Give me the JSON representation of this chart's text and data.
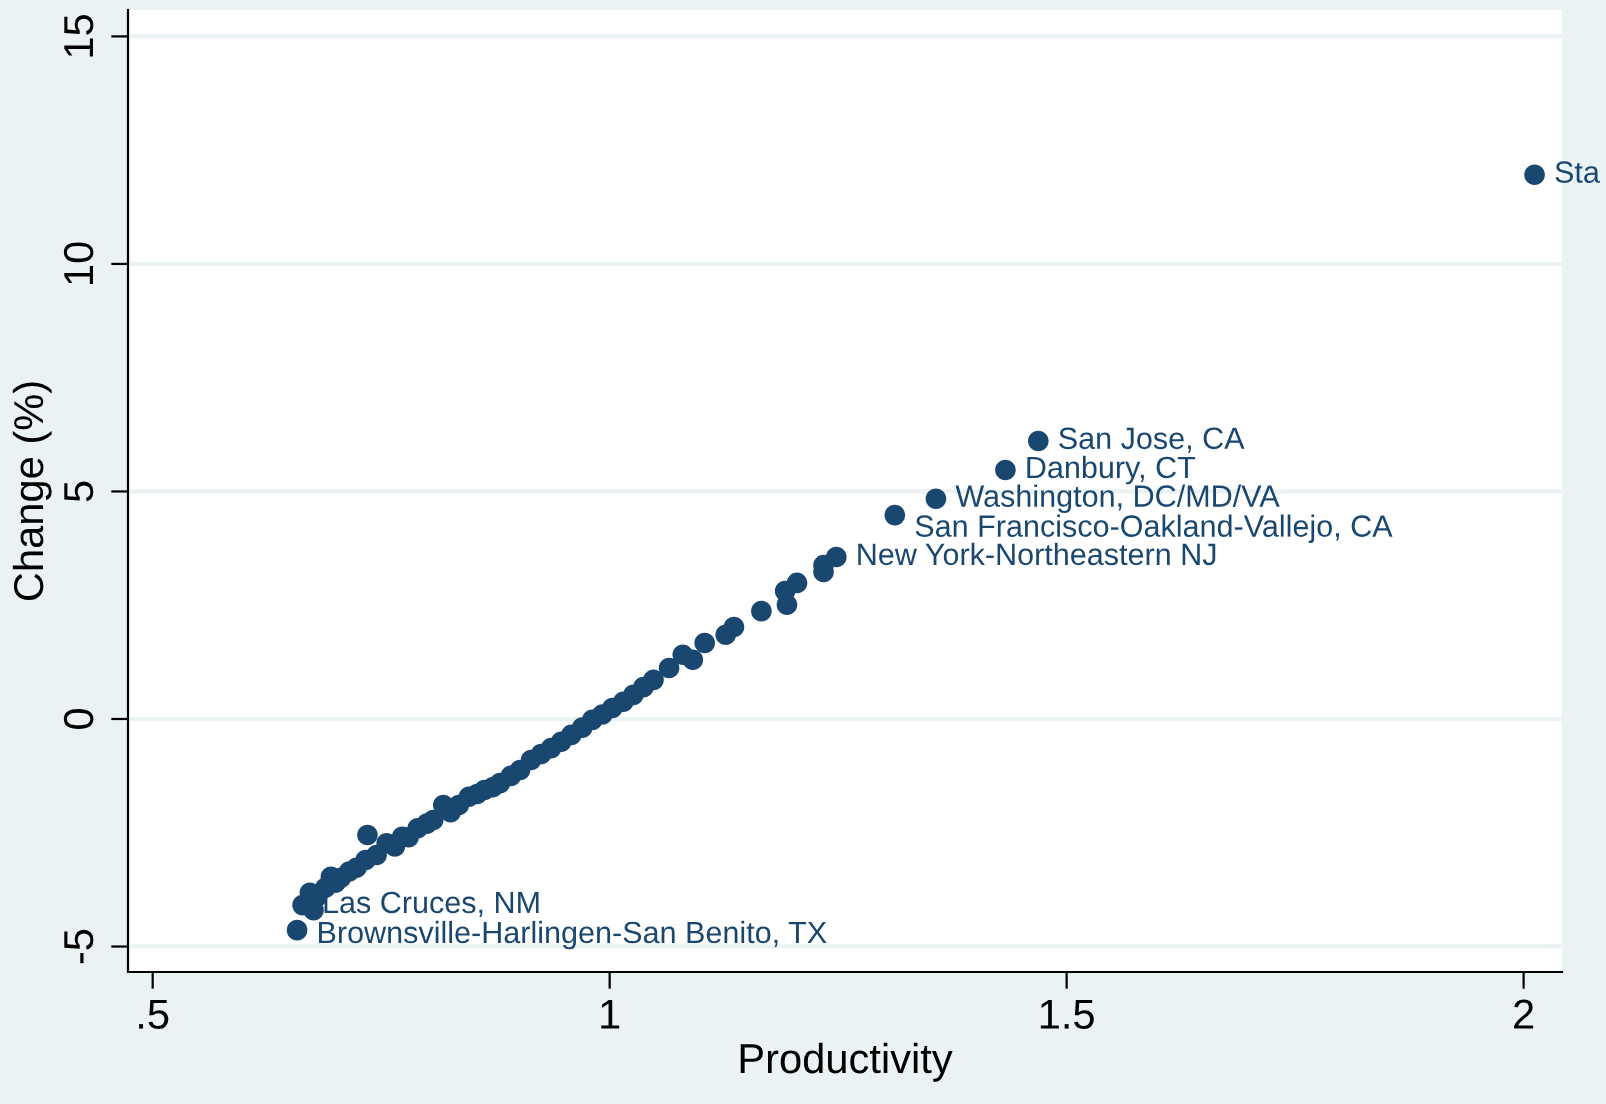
{
  "chart_data": {
    "type": "scatter",
    "xlabel": "Productivity",
    "ylabel": "Change (%)",
    "x": [
      2.012,
      1.469,
      1.433,
      1.357,
      1.312,
      1.248,
      1.234,
      1.234,
      1.205,
      1.192,
      1.194,
      1.166,
      1.136,
      1.127,
      1.104,
      1.08,
      1.091,
      1.065,
      1.048,
      1.026,
      1.003,
      0.981,
      0.958,
      0.936,
      0.914,
      0.902,
      0.88,
      0.863,
      0.846,
      0.835,
      0.818,
      0.807,
      0.79,
      0.773,
      0.756,
      0.735,
      0.745,
      0.723,
      0.706,
      0.695,
      0.689,
      0.672,
      0.664,
      0.658,
      1.037,
      1.015,
      0.992,
      0.97,
      0.947,
      0.925,
      0.892,
      0.872,
      0.855,
      0.826,
      0.8,
      0.78,
      0.765,
      0.733,
      0.715,
      0.7,
      0.68,
      0.676
    ],
    "values": [
      11.96,
      6.11,
      5.47,
      4.84,
      4.48,
      3.56,
      3.38,
      3.23,
      2.99,
      2.81,
      2.51,
      2.37,
      2.02,
      1.85,
      1.67,
      1.41,
      1.3,
      1.12,
      0.86,
      0.53,
      0.24,
      -0.02,
      -0.35,
      -0.64,
      -0.9,
      -1.12,
      -1.41,
      -1.56,
      -1.71,
      -1.89,
      -1.89,
      -2.22,
      -2.4,
      -2.59,
      -2.73,
      -2.55,
      -2.99,
      -3.27,
      -3.49,
      -3.47,
      -3.71,
      -3.82,
      -4.09,
      -4.64,
      0.7,
      0.38,
      0.1,
      -0.19,
      -0.5,
      -0.77,
      -1.25,
      -1.5,
      -1.65,
      -2.05,
      -2.3,
      -2.6,
      -2.8,
      -3.1,
      -3.35,
      -3.6,
      -3.9,
      -4.2
    ],
    "color": "#1a476f",
    "marker": "circle",
    "xlim": [
      0.473,
      2.042
    ],
    "ylim": [
      -5.56,
      15.58
    ],
    "xticks": [
      {
        "value": 0.5,
        "label": ".5"
      },
      1,
      1.5,
      2
    ],
    "yticks": [
      {
        "value": -5,
        "label": "-5"
      },
      0,
      5,
      10,
      15
    ],
    "grid": "y",
    "annotations": [
      {
        "text": "Sta",
        "x": 2.012,
        "y": 11.96
      },
      {
        "text": "San Jose, CA",
        "x": 1.469,
        "y": 6.11
      },
      {
        "text": "Danbury, CT",
        "x": 1.433,
        "y": 5.47
      },
      {
        "text": "Washington, DC/MD/VA",
        "x": 1.357,
        "y": 4.84
      },
      {
        "text": "San Francisco-Oakland-Vallejo, CA",
        "x": 1.312,
        "y": 4.48
      },
      {
        "text": "New York-Northeastern NJ",
        "x": 1.248,
        "y": 3.56
      },
      {
        "text": "Las Cruces, NM",
        "x": 0.664,
        "y": -4.09
      },
      {
        "text": "Brownsville-Harlingen-San Benito, TX",
        "x": 0.658,
        "y": -4.64
      }
    ]
  }
}
